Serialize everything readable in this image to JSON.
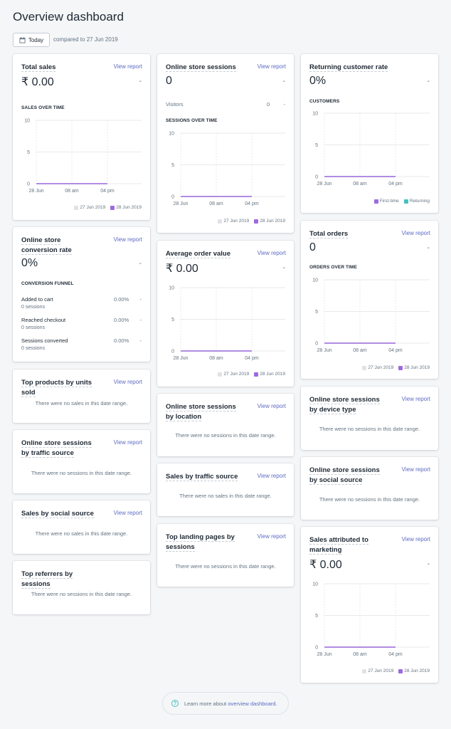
{
  "page": {
    "title": "Overview dashboard",
    "date_button": "Today",
    "compared_to": "compared to 27 Jun 2019",
    "calendar_icon": "calendar-icon"
  },
  "colors": {
    "accent": "#5c6ac4",
    "primary_series": "#9c6ade",
    "compare_series": "#dfe3e8",
    "returning": "#47c1bf"
  },
  "common": {
    "view_report": "View report",
    "dash": "-",
    "no_sales": "There were no sales in this date range.",
    "no_sessions": "There were no sessions in this date range.",
    "legend_prev": "27 Jun 2019",
    "legend_curr": "28 Jun 2019"
  },
  "cards": {
    "total_sales": {
      "title": "Total sales",
      "value": "₹ 0.00",
      "subheading": "SALES OVER TIME"
    },
    "online_store_sessions": {
      "title": "Online store sessions",
      "value": "0",
      "visitors_label": "Visitors",
      "visitors_value": "0",
      "subheading": "SESSIONS OVER TIME"
    },
    "returning_customer_rate": {
      "title": "Returning customer rate",
      "value": "0%",
      "subheading": "CUSTOMERS",
      "legend_first": "First-time",
      "legend_returning": "Returning"
    },
    "conversion_rate": {
      "title": "Online store conversion rate",
      "value": "0%",
      "subheading": "CONVERSION FUNNEL",
      "rows": [
        {
          "label": "Added to cart",
          "sub": "0 sessions",
          "pct": "0.00%"
        },
        {
          "label": "Reached checkout",
          "sub": "0 sessions",
          "pct": "0.00%"
        },
        {
          "label": "Sessions converted",
          "sub": "0 sessions",
          "pct": "0.00%"
        }
      ]
    },
    "average_order_value": {
      "title": "Average order value",
      "value": "₹ 0.00"
    },
    "total_orders": {
      "title": "Total orders",
      "value": "0",
      "subheading": "ORDERS OVER TIME"
    },
    "top_products": {
      "title": "Top products by units sold"
    },
    "sessions_by_location": {
      "title": "Online store sessions by location"
    },
    "sessions_by_device": {
      "title": "Online store sessions by device type"
    },
    "sessions_by_traffic": {
      "title": "Online store sessions by traffic source"
    },
    "sales_by_traffic": {
      "title": "Sales by traffic source"
    },
    "sessions_by_social": {
      "title": "Online store sessions by social source"
    },
    "sales_by_social": {
      "title": "Sales by social source"
    },
    "top_landing_pages": {
      "title": "Top landing pages by sessions"
    },
    "sales_attributed": {
      "title": "Sales attributed to marketing",
      "value": "₹ 0.00"
    },
    "top_referrers": {
      "title": "Top referrers by sessions"
    }
  },
  "chart_data": [
    {
      "chart": "total_sales",
      "type": "line",
      "x": [
        "28 Jun",
        "08 am",
        "04 pm"
      ],
      "y_ticks": [
        "10",
        "5",
        "0"
      ],
      "ylim": [
        0,
        10
      ],
      "series": [
        {
          "name": "27 Jun 2019",
          "values": [
            0,
            0,
            0
          ]
        },
        {
          "name": "28 Jun 2019",
          "values": [
            0,
            0,
            0
          ]
        }
      ]
    },
    {
      "chart": "online_store_sessions",
      "type": "line",
      "x": [
        "28 Jun",
        "08 am",
        "04 pm"
      ],
      "y_ticks": [
        "10",
        "5",
        "0"
      ],
      "ylim": [
        0,
        10
      ],
      "series": [
        {
          "name": "27 Jun 2019",
          "values": [
            0,
            0,
            0
          ]
        },
        {
          "name": "28 Jun 2019",
          "values": [
            0,
            0,
            0
          ]
        }
      ]
    },
    {
      "chart": "returning_customer_rate",
      "type": "line",
      "x": [
        "28 Jun",
        "08 am",
        "04 pm"
      ],
      "y_ticks": [
        "10",
        "5",
        "0"
      ],
      "ylim": [
        0,
        10
      ],
      "series": [
        {
          "name": "First-time",
          "values": [
            0,
            0,
            0
          ]
        },
        {
          "name": "Returning",
          "values": [
            0,
            0,
            0
          ]
        }
      ]
    },
    {
      "chart": "average_order_value",
      "type": "line",
      "x": [
        "28 Jun",
        "08 am",
        "04 pm"
      ],
      "y_ticks": [
        "10",
        "5",
        "0"
      ],
      "ylim": [
        0,
        10
      ],
      "series": [
        {
          "name": "27 Jun 2019",
          "values": [
            0,
            0,
            0
          ]
        },
        {
          "name": "28 Jun 2019",
          "values": [
            0,
            0,
            0
          ]
        }
      ]
    },
    {
      "chart": "total_orders",
      "type": "line",
      "x": [
        "28 Jun",
        "08 am",
        "04 pm"
      ],
      "y_ticks": [
        "10",
        "5",
        "0"
      ],
      "ylim": [
        0,
        10
      ],
      "series": [
        {
          "name": "27 Jun 2019",
          "values": [
            0,
            0,
            0
          ]
        },
        {
          "name": "28 Jun 2019",
          "values": [
            0,
            0,
            0
          ]
        }
      ]
    },
    {
      "chart": "sales_attributed",
      "type": "line",
      "x": [
        "28 Jun",
        "08 am",
        "04 pm"
      ],
      "y_ticks": [
        "10",
        "5",
        "0"
      ],
      "ylim": [
        0,
        10
      ],
      "series": [
        {
          "name": "27 Jun 2019",
          "values": [
            0,
            0,
            0
          ]
        },
        {
          "name": "28 Jun 2019",
          "values": [
            0,
            0,
            0
          ]
        }
      ]
    }
  ],
  "footer": {
    "learn_prefix": "Learn more about",
    "learn_link": "overview dashboard.",
    "icon": "help-circle-icon"
  }
}
